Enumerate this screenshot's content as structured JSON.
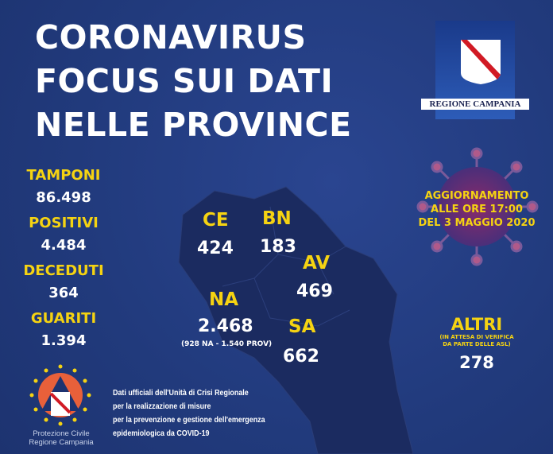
{
  "title": [
    "CORONAVIRUS",
    "FOCUS SUI DATI",
    "NELLE PROVINCE"
  ],
  "region_logo": {
    "text": "REGIONE CAMPANIA"
  },
  "stats": [
    {
      "label": "TAMPONI",
      "value": "86.498"
    },
    {
      "label": "POSITIVI",
      "value": "4.484"
    },
    {
      "label": "DECEDUTI",
      "value": "364"
    },
    {
      "label": "GUARITI",
      "value": "1.394"
    }
  ],
  "provinces": {
    "ce": {
      "label": "CE",
      "value": "424"
    },
    "bn": {
      "label": "BN",
      "value": "183"
    },
    "av": {
      "label": "AV",
      "value": "469"
    },
    "na": {
      "label": "NA",
      "value": "2.468",
      "note": "(928 NA - 1.540 PROV)"
    },
    "sa": {
      "label": "SA",
      "value": "662"
    }
  },
  "update": [
    "AGGIORNAMENTO",
    "ALLE ORE 17:00",
    "DEL 3 MAGGIO 2020"
  ],
  "altri": {
    "label": "ALTRI",
    "note": [
      "(IN ATTESA DI VERIFICA",
      "DA PARTE DELLE ASL)"
    ],
    "value": "278"
  },
  "footer": [
    "Dati ufficiali dell'Unità di Crisi Regionale",
    "per la realizzazione di misure",
    "per la prevenzione e gestione dell'emergenza",
    "epidemiologica da COVID-19"
  ],
  "protezione_logo": {
    "text": [
      "Protezione Civile",
      "Regione Campania"
    ]
  },
  "colors": {
    "background": "#213a7c",
    "accent": "#f5d312",
    "map": "#1b2b60"
  }
}
